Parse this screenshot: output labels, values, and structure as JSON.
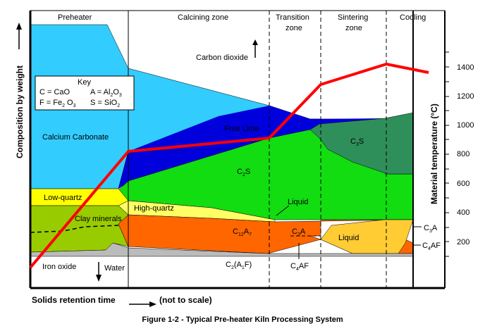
{
  "figure": {
    "caption": "Figure 1-2 - Typical Pre-heater Kiln Processing System",
    "y_axis_label": "Composition by weight",
    "x_axis_label": "Solids retention time",
    "x_axis_note": "(not to scale)",
    "right_axis_label": "Material temperature (°C)",
    "temperature_ticks": [
      "1400",
      "1200",
      "1000",
      "800",
      "600",
      "400",
      "200"
    ]
  },
  "zones": {
    "preheater": "Preheater",
    "calcining": "Calcining zone",
    "transition_1": "Transition",
    "transition_2": "zone",
    "sintering_1": "Sintering",
    "sintering_2": "zone",
    "cooling": "Cooling"
  },
  "key": {
    "title": "Key",
    "c": "C = CaO",
    "a_left": "A = Al",
    "a_sub": "2",
    "a_mid": "O",
    "a_sub2": "3",
    "f_left": "F = Fe",
    "f_sub": "2",
    "f_rest": " O",
    "f_sub2": "3",
    "s_left": "S = SiO",
    "s_sub": "2"
  },
  "regions": {
    "carbon_dioxide": "Carbon dioxide",
    "calcium_carbonate": "Calcium Carbonate",
    "free_lime": "Free Lime",
    "c2s_main": "C",
    "c2s_sub": "2",
    "c2s_end": "S",
    "c3s_main": "C",
    "c3s_sub": "3",
    "c3s_end": "S",
    "low_quartz": "Low-quartz",
    "high_quartz": "High-quartz",
    "liquid_upper": "Liquid",
    "liquid_lower": "Liquid",
    "clay_minerals": "Clay minerals",
    "c12a7_main": "C",
    "c12a7_sub1": "12",
    "c12a7_mid": "A",
    "c12a7_sub2": "7",
    "c3a_inner_main": "C",
    "c3a_inner_sub": "3",
    "c3a_inner_end": "A",
    "c3a_right_main": "C",
    "c3a_right_sub": "3",
    "c3a_right_end": "A",
    "c4af_right_main": "C",
    "c4af_right_sub": "4",
    "c4af_right_end": "AF",
    "c4af_below_main": "C",
    "c4af_below_sub": "4",
    "c4af_below_end": "AF",
    "c2af_main": "C",
    "c2af_sub": "2",
    "c2af_mid": "(A",
    "c2af_sub2": "1",
    "c2af_end": "F)",
    "iron_oxide": "Iron oxide",
    "water": "Water"
  },
  "colors": {
    "calcium_carbonate": "#33ccff",
    "free_lime": "#0000dd",
    "c2s": "#11dd11",
    "c3s": "#2f8f5b",
    "low_quartz": "#ffff00",
    "high_quartz": "#ffff66",
    "clay_minerals": "#99cc00",
    "c12a7": "#ff6600",
    "liquid": "#ffcc33",
    "iron_oxide": "#bbbbbb",
    "temperature_line": "#ff0000"
  }
}
